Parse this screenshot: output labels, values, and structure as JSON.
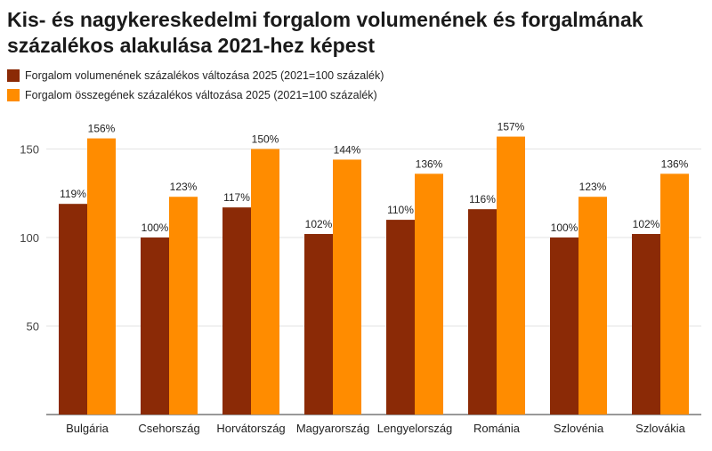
{
  "chart_data": {
    "type": "bar",
    "title": "Kis- és nagykereskedelmi forgalom volumenének és forgalmának százalékos alakulása 2021-hez képest",
    "categories": [
      "Bulgária",
      "Csehország",
      "Horvátország",
      "Magyarország",
      "Lengyelország",
      "Románia",
      "Szlovénia",
      "Szlovákia"
    ],
    "series": [
      {
        "name": "Forgalom volumenének százalékos változása 2025 (2021=100 százalék)",
        "color": "#8b2a06",
        "values": [
          119,
          100,
          117,
          102,
          110,
          116,
          100,
          102
        ],
        "labels": [
          "119%",
          "100%",
          "117%",
          "102%",
          "110%",
          "116%",
          "100%",
          "102%"
        ]
      },
      {
        "name": "Forgalom összegének százalékos változása 2025 (2021=100 százalék)",
        "color": "#ff8c00",
        "values": [
          156,
          123,
          150,
          144,
          136,
          157,
          123,
          136
        ],
        "labels": [
          "156%",
          "123%",
          "150%",
          "144%",
          "136%",
          "157%",
          "123%",
          "136%"
        ]
      }
    ],
    "yticks": [
      50,
      100,
      150
    ],
    "ylim": [
      0,
      165
    ],
    "grid": true,
    "xlabel": "",
    "ylabel": "",
    "legend_position": "top-left"
  }
}
